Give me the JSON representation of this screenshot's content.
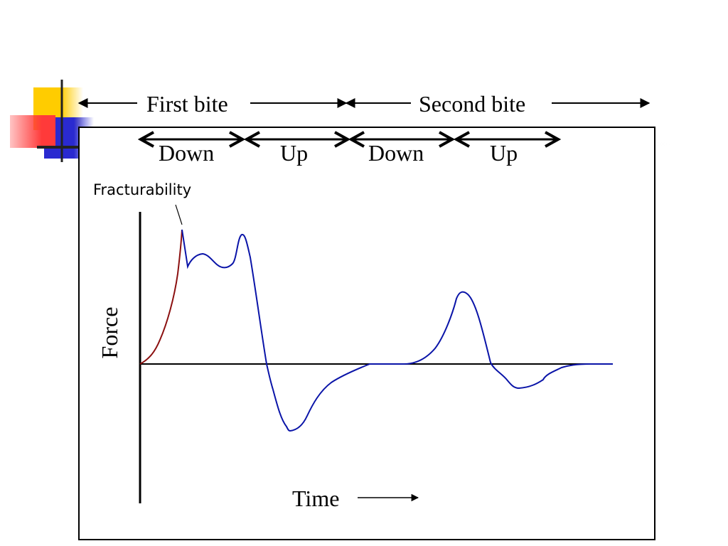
{
  "bites": {
    "first": "First bite",
    "second": "Second bite"
  },
  "phases": [
    "Down",
    "Up",
    "Down",
    "Up"
  ],
  "annotation": "Fracturability",
  "axes": {
    "y_label": "Force",
    "x_label": "Time"
  },
  "colors": {
    "curve": "#0a14a8",
    "initial_rise": "#8b1010",
    "accent_yellow": "#ffcc00",
    "accent_red": "#ff3a3a",
    "accent_blue": "#2a2ad0"
  }
}
